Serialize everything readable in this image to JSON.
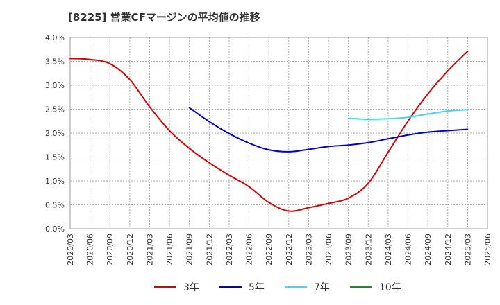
{
  "chart_data": {
    "type": "line",
    "title": "[8225]  営業CFマージンの平均値の推移",
    "xlabel": "",
    "ylabel": "",
    "x": [
      "2020/03",
      "2020/06",
      "2020/09",
      "2020/12",
      "2021/03",
      "2021/06",
      "2021/09",
      "2021/12",
      "2022/03",
      "2022/06",
      "2022/09",
      "2022/12",
      "2023/03",
      "2023/06",
      "2023/09",
      "2023/12",
      "2024/03",
      "2024/06",
      "2024/09",
      "2024/12",
      "2025/03",
      "2025/06"
    ],
    "y_ticks": [
      "0.0%",
      "0.5%",
      "1.0%",
      "1.5%",
      "2.0%",
      "2.5%",
      "3.0%",
      "3.5%",
      "4.0%"
    ],
    "ylim": [
      0,
      4.0
    ],
    "grid": true,
    "legend_position": "bottom",
    "series": [
      {
        "name": "3年",
        "color": "#dd0000",
        "values": [
          3.56,
          3.54,
          3.45,
          3.12,
          2.55,
          2.05,
          1.68,
          1.38,
          1.12,
          0.88,
          0.55,
          0.37,
          0.44,
          0.53,
          0.64,
          0.95,
          1.6,
          2.25,
          2.82,
          3.3,
          3.71,
          null
        ]
      },
      {
        "name": "5年",
        "color": "#0000cc",
        "values": [
          null,
          null,
          null,
          null,
          null,
          null,
          2.53,
          2.24,
          1.99,
          1.79,
          1.65,
          1.61,
          1.66,
          1.72,
          1.75,
          1.8,
          1.88,
          1.96,
          2.02,
          2.05,
          2.08,
          null
        ]
      },
      {
        "name": "7年",
        "color": "#33ddee",
        "values": [
          null,
          null,
          null,
          null,
          null,
          null,
          null,
          null,
          null,
          null,
          null,
          null,
          null,
          null,
          2.31,
          2.29,
          2.3,
          2.33,
          2.4,
          2.46,
          2.49,
          null
        ]
      },
      {
        "name": "10年",
        "color": "#228822",
        "values": [
          null,
          null,
          null,
          null,
          null,
          null,
          null,
          null,
          null,
          null,
          null,
          null,
          null,
          null,
          null,
          null,
          null,
          null,
          null,
          null,
          null,
          null
        ]
      }
    ]
  }
}
